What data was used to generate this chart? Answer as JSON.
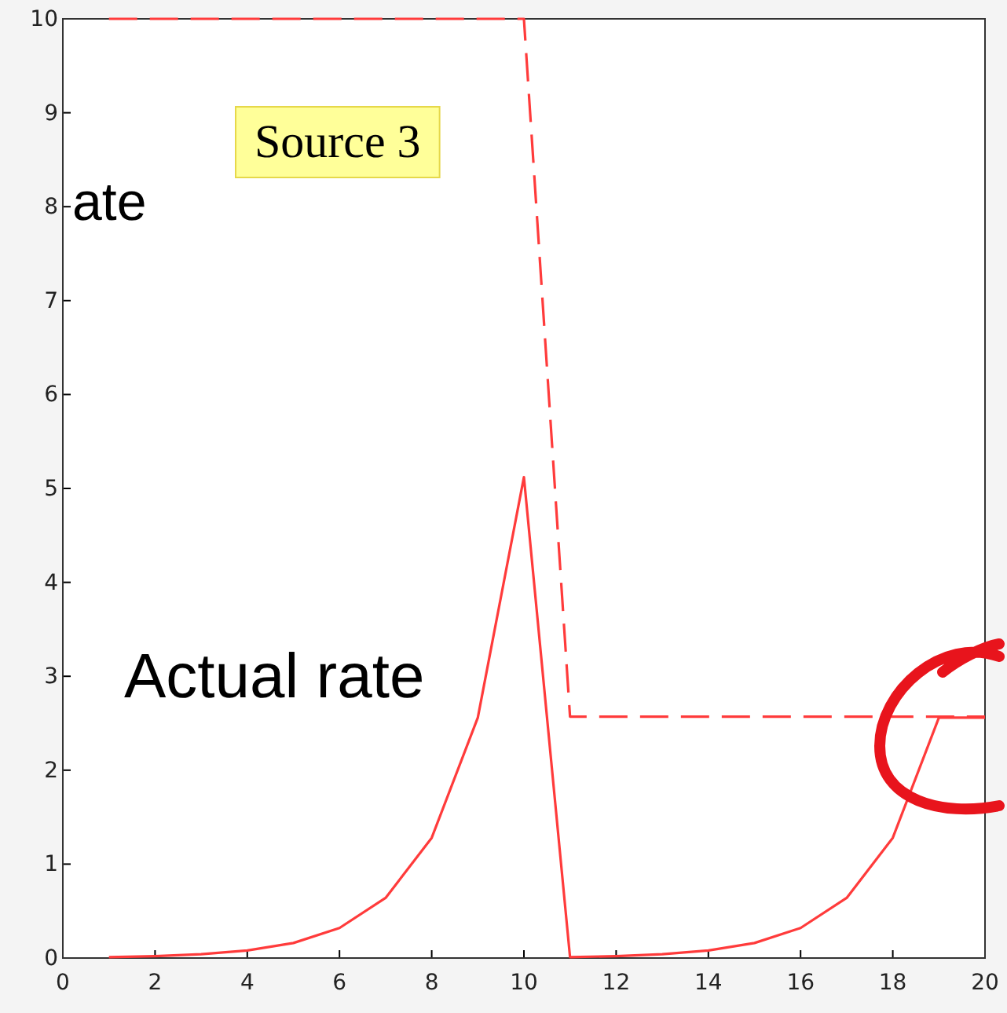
{
  "chart_data": {
    "type": "line",
    "x": [
      1,
      2,
      3,
      4,
      5,
      6,
      7,
      8,
      9,
      10,
      11,
      12,
      13,
      14,
      15,
      16,
      17,
      18,
      19,
      20
    ],
    "series": [
      {
        "color": "#ff3b3b",
        "line_style": "dashed",
        "values": [
          10,
          10,
          10,
          10,
          10,
          10,
          10,
          10,
          10,
          10,
          2.57,
          2.57,
          2.57,
          2.57,
          2.57,
          2.57,
          2.57,
          2.57,
          2.57,
          2.57
        ]
      },
      {
        "color": "#ff3b3b",
        "line_style": "solid",
        "values": [
          0.01,
          0.02,
          0.04,
          0.08,
          0.16,
          0.32,
          0.64,
          1.28,
          2.56,
          5.12,
          0.01,
          0.02,
          0.04,
          0.08,
          0.16,
          0.32,
          0.64,
          1.28,
          2.56,
          2.56
        ]
      }
    ],
    "xlim": [
      0,
      20
    ],
    "xticks": [
      0,
      2,
      4,
      6,
      8,
      10,
      12,
      14,
      16,
      18,
      20
    ],
    "ylim": [
      0,
      10
    ],
    "yticks": [
      0,
      1,
      2,
      3,
      4,
      5,
      6,
      7,
      8,
      9,
      10
    ],
    "grid": false,
    "marker": "none",
    "annotations": [
      "ate",
      "Source 3",
      "Actual rate"
    ]
  }
}
